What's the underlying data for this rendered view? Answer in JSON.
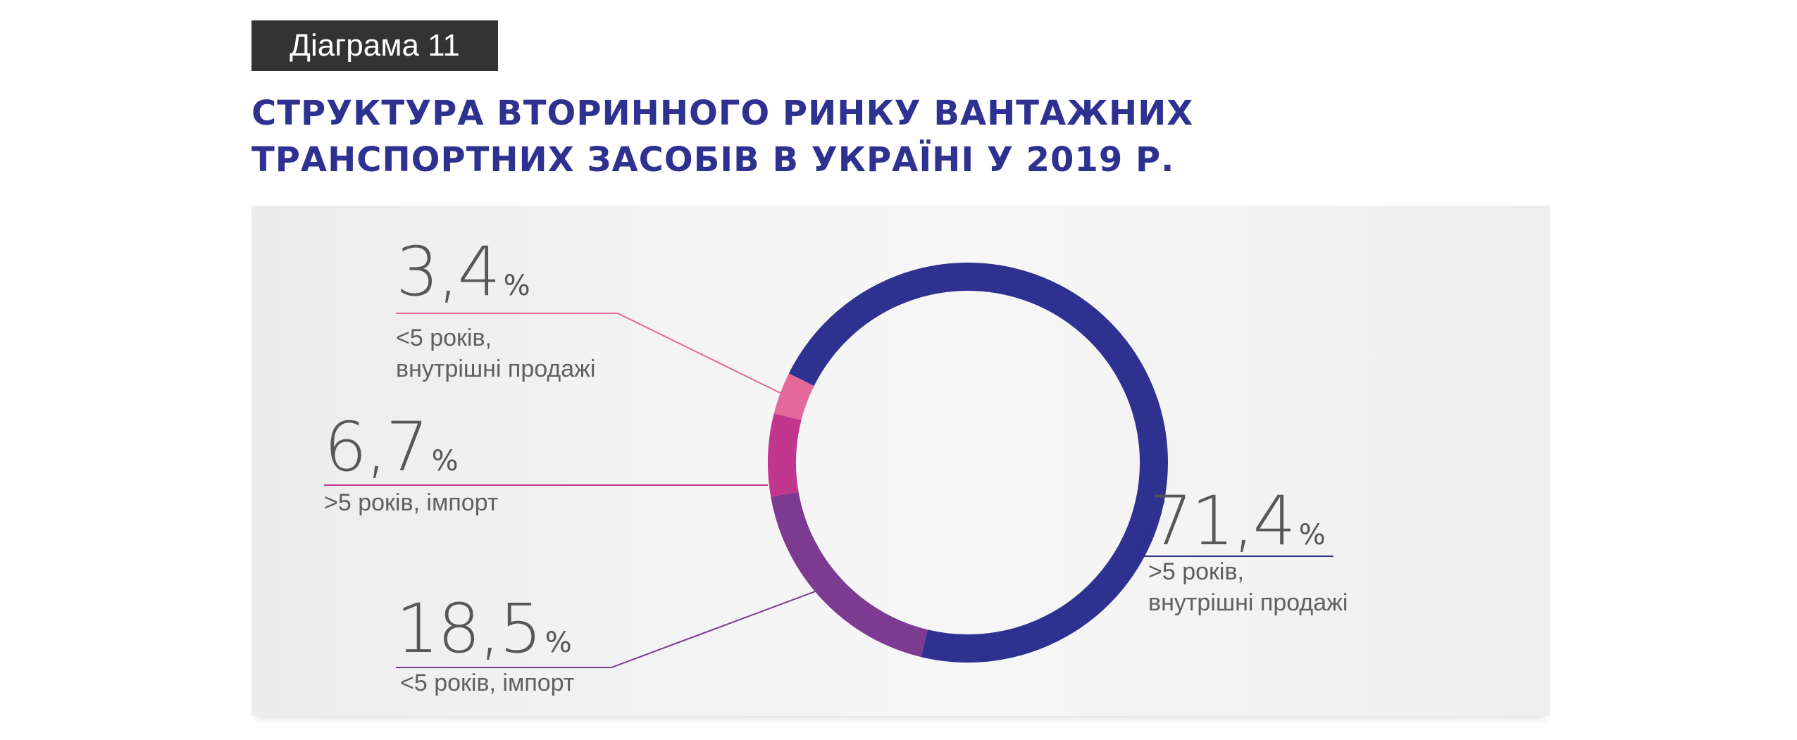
{
  "tag": "Діаграма 11",
  "title": {
    "line1": "СТРУКТУРА ВТОРИННОГО РИНКУ ВАНТАЖНИХ",
    "line2": "ТРАНСПОРТНИХ ЗАСОБІВ В УКРАЇНІ У 2019 Р."
  },
  "chart_data": {
    "type": "pie",
    "variant": "donut",
    "title": "СТРУКТУРА ВТОРИННОГО РИНКУ ВАНТАЖНИХ ТРАНСПОРТНИХ ЗАСОБІВ В УКРАЇНІ У 2019 Р.",
    "unit": "%",
    "slices": [
      {
        "label_line1": ">5 років,",
        "label_line2": "внутрішні продажі",
        "value": 71.4,
        "value_text": "71,4",
        "color": "#2e3190"
      },
      {
        "label_line1": "<5 років, імпорт",
        "label_line2": "",
        "value": 18.5,
        "value_text": "18,5",
        "color": "#7c3a91"
      },
      {
        "label_line1": ">5 років, імпорт",
        "label_line2": "",
        "value": 6.7,
        "value_text": "6,7",
        "color": "#c1368f"
      },
      {
        "label_line1": "<5 років,",
        "label_line2": "внутрішні продажі",
        "value": 3.4,
        "value_text": "3,4",
        "color": "#e4689a"
      }
    ]
  }
}
